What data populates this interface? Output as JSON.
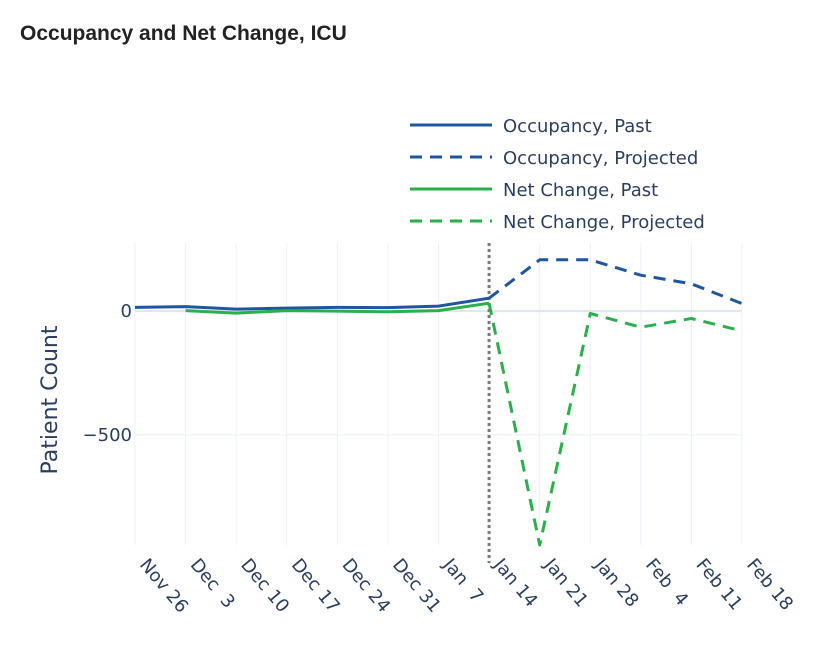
{
  "chart_data": {
    "type": "line",
    "title": "Occupancy and Net Change, ICU",
    "ylabel": "Patient Count",
    "xlabel": "",
    "x_ticks": [
      "Nov 26",
      "Dec  3",
      "Dec 10",
      "Dec 17",
      "Dec 24",
      "Dec 31",
      "Jan  7",
      "Jan 14",
      "Jan 21",
      "Jan 28",
      "Feb  4",
      "Feb 11",
      "Feb 18"
    ],
    "y_ticks": [
      0,
      -500
    ],
    "y_tick_labels": [
      "0",
      "−500"
    ],
    "ylim": [
      -945,
      275
    ],
    "xlim": [
      "2023-11-26",
      "2024-02-18"
    ],
    "divider_date": "2024-01-14",
    "legend_position": "top-right",
    "grid": true,
    "series": [
      {
        "name": "Occupancy, Past",
        "style": "solid",
        "color": "#1f56a0",
        "x": [
          "2023-11-26",
          "2023-12-03",
          "2023-12-10",
          "2023-12-17",
          "2023-12-24",
          "2023-12-31",
          "2024-01-07",
          "2024-01-14"
        ],
        "y": [
          15,
          18,
          8,
          12,
          15,
          14,
          20,
          52
        ]
      },
      {
        "name": "Occupancy, Projected",
        "style": "dashed",
        "color": "#1f56a0",
        "x": [
          "2024-01-14",
          "2024-01-21",
          "2024-01-28",
          "2024-02-04",
          "2024-02-11",
          "2024-02-18"
        ],
        "y": [
          52,
          207,
          207,
          145,
          110,
          30
        ]
      },
      {
        "name": "Net Change, Past",
        "style": "solid",
        "color": "#2ab04a",
        "x": [
          "2023-12-03",
          "2023-12-10",
          "2023-12-17",
          "2023-12-24",
          "2023-12-31",
          "2024-01-07",
          "2024-01-14"
        ],
        "y": [
          2,
          -8,
          2,
          0,
          -3,
          2,
          32
        ]
      },
      {
        "name": "Net Change, Projected",
        "style": "dashed",
        "color": "#2ab04a",
        "x": [
          "2024-01-14",
          "2024-01-21",
          "2024-01-28",
          "2024-02-04",
          "2024-02-11",
          "2024-02-18"
        ],
        "y": [
          32,
          -945,
          -10,
          -65,
          -30,
          -80
        ]
      }
    ]
  }
}
